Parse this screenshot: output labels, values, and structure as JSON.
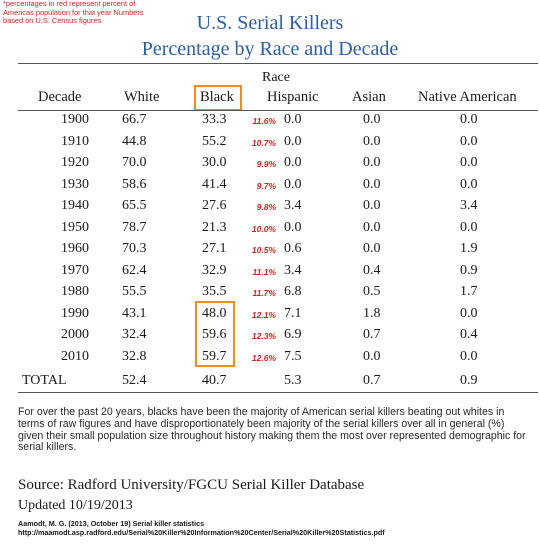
{
  "note": "*percentages in red represent percent of Americas population for that year Numbers based on U.S. Census figures",
  "title_line1": "U.S. Serial Killers",
  "title_line2": "Percentage by Race and Decade",
  "group_header": "Race",
  "columns": [
    "Decade",
    "White",
    "Black",
    "Hispanic",
    "Asian",
    "Native American"
  ],
  "rows": [
    {
      "decade": "1900",
      "white": "66.7",
      "black": "33.3",
      "pct": "11.6%",
      "hispanic": "0.0",
      "asian": "0.0",
      "native": "0.0"
    },
    {
      "decade": "1910",
      "white": "44.8",
      "black": "55.2",
      "pct": "10.7%",
      "hispanic": "0.0",
      "asian": "0.0",
      "native": "0.0"
    },
    {
      "decade": "1920",
      "white": "70.0",
      "black": "30.0",
      "pct": "9.9%",
      "hispanic": "0.0",
      "asian": "0.0",
      "native": "0.0"
    },
    {
      "decade": "1930",
      "white": "58.6",
      "black": "41.4",
      "pct": "9.7%",
      "hispanic": "0.0",
      "asian": "0.0",
      "native": "0.0"
    },
    {
      "decade": "1940",
      "white": "65.5",
      "black": "27.6",
      "pct": "9.8%",
      "hispanic": "3.4",
      "asian": "0.0",
      "native": "3.4"
    },
    {
      "decade": "1950",
      "white": "78.7",
      "black": "21.3",
      "pct": "10.0%",
      "hispanic": "0.0",
      "asian": "0.0",
      "native": "0.0"
    },
    {
      "decade": "1960",
      "white": "70.3",
      "black": "27.1",
      "pct": "10.5%",
      "hispanic": "0.6",
      "asian": "0.0",
      "native": "1.9"
    },
    {
      "decade": "1970",
      "white": "62.4",
      "black": "32.9",
      "pct": "11.1%",
      "hispanic": "3.4",
      "asian": "0.4",
      "native": "0.9"
    },
    {
      "decade": "1980",
      "white": "55.5",
      "black": "35.5",
      "pct": "11.7%",
      "hispanic": "6.8",
      "asian": "0.5",
      "native": "1.7"
    },
    {
      "decade": "1990",
      "white": "43.1",
      "black": "48.0",
      "pct": "12.1%",
      "hispanic": "7.1",
      "asian": "1.8",
      "native": "0.0"
    },
    {
      "decade": "2000",
      "white": "32.4",
      "black": "59.6",
      "pct": "12.3%",
      "hispanic": "6.9",
      "asian": "0.7",
      "native": "0.4"
    },
    {
      "decade": "2010",
      "white": "32.8",
      "black": "59.7",
      "pct": "12.6%",
      "hispanic": "7.5",
      "asian": "0.0",
      "native": "0.0"
    }
  ],
  "total": {
    "decade": "TOTAL",
    "white": "52.4",
    "black": "40.7",
    "hispanic": "5.3",
    "asian": "0.7",
    "native": "0.9"
  },
  "paragraph": "For over the past 20 years, blacks have been the majority of American serial killers beating out whites in terms of raw figures and have disproportionately been majority of the serial killers over all in general (%) given their small population size throughout history making them the most over represented demographic for serial killers.",
  "source": "Source: Radford University/FGCU Serial Killer Database",
  "updated": "Updated 10/19/2013",
  "citation_line1": "Aamodt, M. G. (2013, October 19) Serial killer statistics",
  "citation_line2": "http://maamodt.asp.radford.edu/Serial%20Killer%20Information%20Center/Serial%20Killer%20Statistics.pdf",
  "colors": {
    "title": "#2b5fa8",
    "percent": "#c8281f",
    "highlight_box": "#f08a24"
  }
}
